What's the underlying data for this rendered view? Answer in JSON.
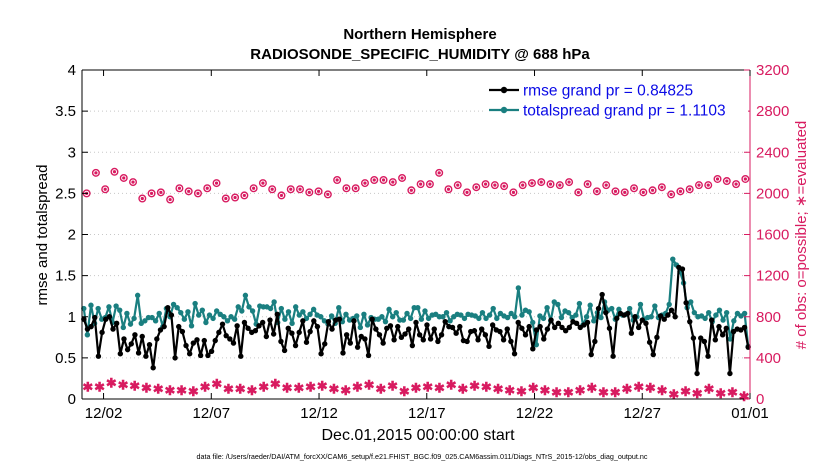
{
  "chart_data": {
    "type": "line",
    "title": "Northern Hemisphere",
    "subtitle": "RADIOSONDE_SPECIFIC_HUMIDITY @ 688 hPa",
    "xlabel": "Dec.01,2015 00:00:00 start",
    "ylabel_left": "rmse and totalspread",
    "ylabel_right": "# of obs: o=possible; ∗=evaluated",
    "footer": "data file: /Users/raeder/DAI/ATM_forcXX/CAM6_setup/f.e21.FHIST_BGC.f09_025.CAM6assim.011/Diags_NTrS_2015-12/obs_diag_output.nc",
    "xlim": [
      0,
      31
    ],
    "ylim_left": [
      0,
      4
    ],
    "ylim_right": [
      0,
      3200
    ],
    "yticks_left": [
      "0",
      "0.5",
      "1",
      "1.5",
      "2",
      "2.5",
      "3",
      "3.5",
      "4"
    ],
    "yticks_right": [
      "0",
      "400",
      "800",
      "1200",
      "1600",
      "2000",
      "2400",
      "2800",
      "3200"
    ],
    "xticks": [
      {
        "label": "12/02",
        "day": 1
      },
      {
        "label": "12/07",
        "day": 6
      },
      {
        "label": "12/12",
        "day": 11
      },
      {
        "label": "12/17",
        "day": 16
      },
      {
        "label": "12/22",
        "day": 21
      },
      {
        "label": "12/27",
        "day": 26
      },
      {
        "label": "01/01",
        "day": 31
      }
    ],
    "legend_position": "top-right",
    "series": [
      {
        "name": "rmse grand pr = 0.84825",
        "axis": "left",
        "color": "#000000",
        "values": [
          0.97,
          0.85,
          0.88,
          0.99,
          0.52,
          0.81,
          0.97,
          1.0,
          0.85,
          0.92,
          0.55,
          0.73,
          0.6,
          0.67,
          0.78,
          0.56,
          0.76,
          0.52,
          0.66,
          0.38,
          0.73,
          0.84,
          0.88,
          1.11,
          1.02,
          0.5,
          0.88,
          0.82,
          0.65,
          0.55,
          0.68,
          0.72,
          0.53,
          0.71,
          0.53,
          0.58,
          0.71,
          0.81,
          0.91,
          0.77,
          0.73,
          0.68,
          0.89,
          0.52,
          0.93,
          0.86,
          0.81,
          0.83,
          0.89,
          0.93,
          0.76,
          0.96,
          0.79,
          1.03,
          0.7,
          0.59,
          0.86,
          0.8,
          0.65,
          0.81,
          0.95,
          0.69,
          0.82,
          0.95,
          0.88,
          0.55,
          0.67,
          0.94,
          0.85,
          0.96,
          0.97,
          0.56,
          0.78,
          0.68,
          0.95,
          0.63,
          0.76,
          0.73,
          0.53,
          0.97,
          0.85,
          0.78,
          0.68,
          0.86,
          0.89,
          0.72,
          0.88,
          0.75,
          0.79,
          0.85,
          0.65,
          0.93,
          0.78,
          0.72,
          0.9,
          0.73,
          0.85,
          0.7,
          0.78,
          0.94,
          0.88,
          0.87,
          0.8,
          0.88,
          0.71,
          0.7,
          0.82,
          0.83,
          0.72,
          0.85,
          0.78,
          0.64,
          0.9,
          0.84,
          0.82,
          0.72,
          0.85,
          0.7,
          0.55,
          0.93,
          0.86,
          0.78,
          0.88,
          0.61,
          0.84,
          0.88,
          0.73,
          0.85,
          0.96,
          0.87,
          0.92,
          0.87,
          0.83,
          0.87,
          0.94,
          0.92,
          0.87,
          0.9,
          0.93,
          0.54,
          0.7,
          1.1,
          1.27,
          1.05,
          0.86,
          0.52,
          0.98,
          1.04,
          1.02,
          1.04,
          0.8,
          1.0,
          0.87,
          0.96,
          0.92,
          0.69,
          0.54,
          0.75,
          1.01,
          0.97,
          1.02,
          1.08,
          1.0,
          1.6,
          1.58,
          1.17,
          0.94,
          0.74,
          0.31,
          0.74,
          0.7,
          0.52,
          0.96,
          0.72,
          0.88,
          0.78,
          0.86,
          0.31,
          0.82,
          0.85,
          0.84,
          0.87,
          0.63
        ]
      },
      {
        "name": "totalspread grand pr = 1.1103",
        "axis": "left",
        "color": "#1a7f80",
        "values": [
          1.1,
          0.78,
          1.14,
          0.92,
          1.1,
          0.97,
          0.99,
          1.12,
          0.93,
          1.13,
          1.08,
          0.87,
          1.04,
          0.91,
          0.98,
          1.26,
          0.92,
          0.95,
          0.99,
          0.99,
          0.95,
          1.04,
          0.88,
          1.1,
          1.0,
          1.15,
          1.11,
          1.05,
          0.97,
          1.06,
          0.89,
          1.16,
          1.02,
          1.08,
          0.93,
          1.02,
          0.98,
          1.07,
          1.03,
          1.0,
          0.95,
          1.0,
          0.97,
          1.12,
          1.07,
          1.26,
          1.12,
          1.07,
          0.91,
          1.13,
          1.12,
          1.12,
          1.1,
          1.18,
          0.93,
          1.1,
          0.97,
          1.06,
          0.92,
          1.12,
          1.02,
          1.06,
          0.98,
          1.03,
          1.09,
          1.02,
          1.0,
          0.95,
          0.91,
          1.01,
          0.92,
          1.11,
          0.94,
          1.03,
          0.96,
          0.98,
          1.01,
          0.87,
          1.03,
          0.9,
          0.99,
          0.97,
          0.97,
          1.0,
          0.94,
          1.09,
          1.0,
          1.05,
          0.96,
          0.96,
          1.04,
          0.98,
          1.11,
          1.11,
          0.97,
          1.07,
          0.98,
          1.02,
          1.03,
          1.0,
          1.0,
          1.05,
          0.95,
          1.0,
          1.03,
          1.02,
          0.98,
          1.03,
          1.02,
          1.01,
          0.98,
          1.05,
          0.98,
          1.02,
          1.1,
          0.98,
          1.04,
          1.01,
          0.99,
          1.04,
          1.0,
          1.35,
          1.02,
          1.08,
          1.06,
          0.93,
          0.66,
          1.01,
          0.98,
          1.11,
          0.95,
          1.18,
          1.15,
          0.99,
          1.07,
          1.05,
          0.99,
          1.02,
          1.16,
          0.9,
          1.0,
          1.14,
          0.95,
          1.05,
          0.99,
          1.18,
          1.08,
          1.1,
          0.97,
          1.09,
          1.02,
          1.03,
          1.1,
          0.96,
          1.0,
          1.15,
          0.97,
          0.99,
          1.0,
          1.13,
          0.99,
          1.02,
          1.04,
          1.15,
          1.7,
          1.63,
          1.55,
          1.41,
          1.11,
          1.18,
          1.05,
          1.0,
          1.01,
          0.98,
          1.05,
          0.94,
          1.02,
          1.08,
          0.96,
          1.05,
          0.73,
          0.95,
          1.04,
          1.01,
          1.04,
          0.64
        ]
      }
    ],
    "obs_possible": {
      "name": "possible",
      "axis": "right",
      "marker": "o",
      "color": "#d81b60",
      "values": [
        2000,
        2200,
        2040,
        2210,
        2150,
        2110,
        1950,
        2000,
        2010,
        1940,
        2050,
        2020,
        2000,
        2050,
        2100,
        1950,
        1960,
        1980,
        2050,
        2100,
        2040,
        1980,
        2040,
        2040,
        2010,
        2020,
        1990,
        2130,
        2050,
        2050,
        2100,
        2130,
        2130,
        2110,
        2150,
        2030,
        2090,
        2090,
        2200,
        2040,
        2080,
        2010,
        2060,
        2090,
        2080,
        2070,
        2010,
        2080,
        2100,
        2110,
        2090,
        2080,
        2110,
        2010,
        2090,
        2020,
        2080,
        2020,
        2010,
        2050,
        2010,
        2030,
        2060,
        1990,
        2020,
        2040,
        2080,
        2080,
        2140,
        2120,
        2090,
        2140
      ]
    },
    "obs_evaluated": {
      "name": "evaluated",
      "axis": "right",
      "marker": "*",
      "color": "#d81b60",
      "values": [
        110,
        110,
        150,
        130,
        120,
        100,
        90,
        80,
        80,
        70,
        110,
        140,
        90,
        90,
        80,
        110,
        140,
        100,
        100,
        110,
        120,
        90,
        80,
        110,
        130,
        90,
        120,
        70,
        100,
        110,
        100,
        130,
        90,
        120,
        110,
        90,
        80,
        70,
        100,
        80,
        60,
        60,
        80,
        100,
        60,
        60,
        90,
        110,
        100,
        80,
        40,
        70,
        50,
        90,
        50,
        60,
        20
      ]
    }
  }
}
